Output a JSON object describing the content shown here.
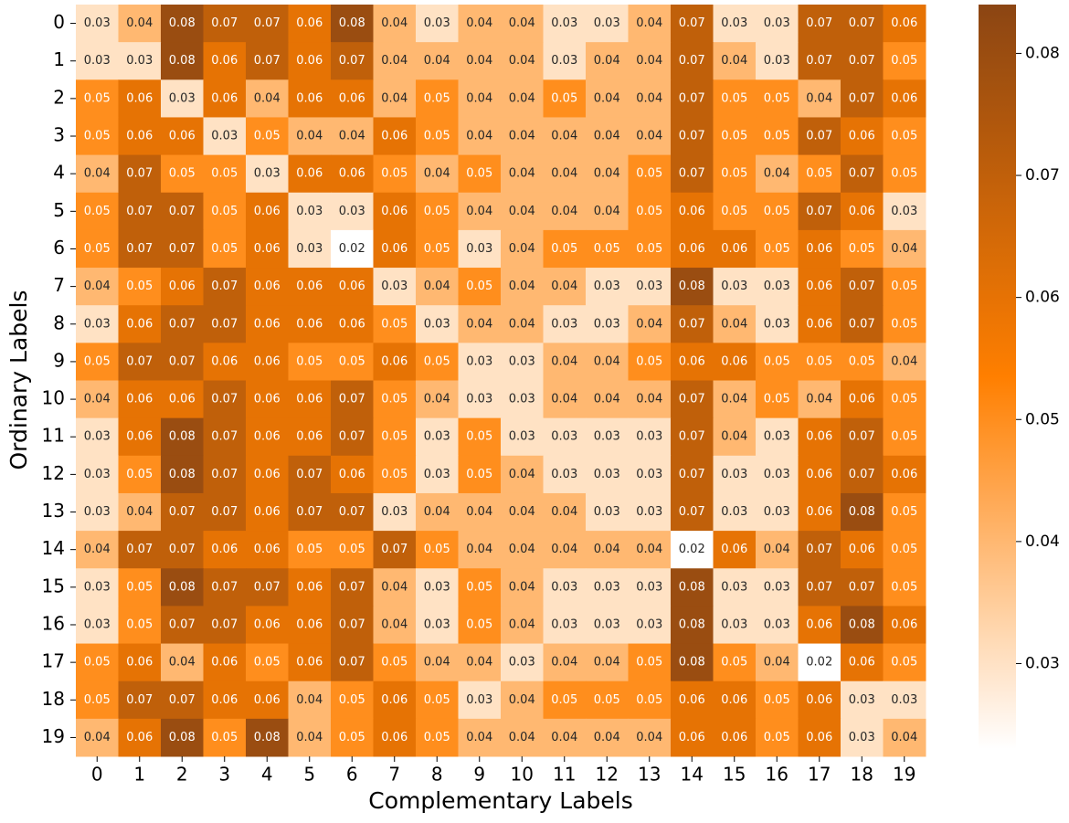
{
  "chart_data": {
    "type": "heatmap",
    "xlabel": "Complementary Labels",
    "ylabel": "Ordinary Labels",
    "x_categories": [
      0,
      1,
      2,
      3,
      4,
      5,
      6,
      7,
      8,
      9,
      10,
      11,
      12,
      13,
      14,
      15,
      16,
      17,
      18,
      19
    ],
    "y_categories": [
      0,
      1,
      2,
      3,
      4,
      5,
      6,
      7,
      8,
      9,
      10,
      11,
      12,
      13,
      14,
      15,
      16,
      17,
      18,
      19
    ],
    "values": [
      [
        0.03,
        0.04,
        0.08,
        0.07,
        0.07,
        0.06,
        0.08,
        0.04,
        0.03,
        0.04,
        0.04,
        0.03,
        0.03,
        0.04,
        0.07,
        0.03,
        0.03,
        0.07,
        0.07,
        0.06
      ],
      [
        0.03,
        0.03,
        0.08,
        0.06,
        0.07,
        0.06,
        0.07,
        0.04,
        0.04,
        0.04,
        0.04,
        0.03,
        0.04,
        0.04,
        0.07,
        0.04,
        0.03,
        0.07,
        0.07,
        0.05
      ],
      [
        0.05,
        0.06,
        0.03,
        0.06,
        0.04,
        0.06,
        0.06,
        0.04,
        0.05,
        0.04,
        0.04,
        0.05,
        0.04,
        0.04,
        0.07,
        0.05,
        0.05,
        0.04,
        0.07,
        0.06
      ],
      [
        0.05,
        0.06,
        0.06,
        0.03,
        0.05,
        0.04,
        0.04,
        0.06,
        0.05,
        0.04,
        0.04,
        0.04,
        0.04,
        0.04,
        0.07,
        0.05,
        0.05,
        0.07,
        0.06,
        0.05
      ],
      [
        0.04,
        0.07,
        0.05,
        0.05,
        0.03,
        0.06,
        0.06,
        0.05,
        0.04,
        0.05,
        0.04,
        0.04,
        0.04,
        0.05,
        0.07,
        0.05,
        0.04,
        0.05,
        0.07,
        0.05
      ],
      [
        0.05,
        0.07,
        0.07,
        0.05,
        0.06,
        0.03,
        0.03,
        0.06,
        0.05,
        0.04,
        0.04,
        0.04,
        0.04,
        0.05,
        0.06,
        0.05,
        0.05,
        0.07,
        0.06,
        0.03
      ],
      [
        0.05,
        0.07,
        0.07,
        0.05,
        0.06,
        0.03,
        0.02,
        0.06,
        0.05,
        0.03,
        0.04,
        0.05,
        0.05,
        0.05,
        0.06,
        0.06,
        0.05,
        0.06,
        0.05,
        0.04
      ],
      [
        0.04,
        0.05,
        0.06,
        0.07,
        0.06,
        0.06,
        0.06,
        0.03,
        0.04,
        0.05,
        0.04,
        0.04,
        0.03,
        0.03,
        0.08,
        0.03,
        0.03,
        0.06,
        0.07,
        0.05
      ],
      [
        0.03,
        0.06,
        0.07,
        0.07,
        0.06,
        0.06,
        0.06,
        0.05,
        0.03,
        0.04,
        0.04,
        0.03,
        0.03,
        0.04,
        0.07,
        0.04,
        0.03,
        0.06,
        0.07,
        0.05
      ],
      [
        0.05,
        0.07,
        0.07,
        0.06,
        0.06,
        0.05,
        0.05,
        0.06,
        0.05,
        0.03,
        0.03,
        0.04,
        0.04,
        0.05,
        0.06,
        0.06,
        0.05,
        0.05,
        0.05,
        0.04
      ],
      [
        0.04,
        0.06,
        0.06,
        0.07,
        0.06,
        0.06,
        0.07,
        0.05,
        0.04,
        0.03,
        0.03,
        0.04,
        0.04,
        0.04,
        0.07,
        0.04,
        0.05,
        0.04,
        0.06,
        0.05
      ],
      [
        0.03,
        0.06,
        0.08,
        0.07,
        0.06,
        0.06,
        0.07,
        0.05,
        0.03,
        0.05,
        0.03,
        0.03,
        0.03,
        0.03,
        0.07,
        0.04,
        0.03,
        0.06,
        0.07,
        0.05
      ],
      [
        0.03,
        0.05,
        0.08,
        0.07,
        0.06,
        0.07,
        0.06,
        0.05,
        0.03,
        0.05,
        0.04,
        0.03,
        0.03,
        0.03,
        0.07,
        0.03,
        0.03,
        0.06,
        0.07,
        0.06
      ],
      [
        0.03,
        0.04,
        0.07,
        0.07,
        0.06,
        0.07,
        0.07,
        0.03,
        0.04,
        0.04,
        0.04,
        0.04,
        0.03,
        0.03,
        0.07,
        0.03,
        0.03,
        0.06,
        0.08,
        0.05
      ],
      [
        0.04,
        0.07,
        0.07,
        0.06,
        0.06,
        0.05,
        0.05,
        0.07,
        0.05,
        0.04,
        0.04,
        0.04,
        0.04,
        0.04,
        0.02,
        0.06,
        0.04,
        0.07,
        0.06,
        0.05
      ],
      [
        0.03,
        0.05,
        0.08,
        0.07,
        0.07,
        0.06,
        0.07,
        0.04,
        0.03,
        0.05,
        0.04,
        0.03,
        0.03,
        0.03,
        0.08,
        0.03,
        0.03,
        0.07,
        0.07,
        0.05
      ],
      [
        0.03,
        0.05,
        0.07,
        0.07,
        0.06,
        0.06,
        0.07,
        0.04,
        0.03,
        0.05,
        0.04,
        0.03,
        0.03,
        0.03,
        0.08,
        0.03,
        0.03,
        0.06,
        0.08,
        0.06
      ],
      [
        0.05,
        0.06,
        0.04,
        0.06,
        0.05,
        0.06,
        0.07,
        0.05,
        0.04,
        0.04,
        0.03,
        0.04,
        0.04,
        0.05,
        0.08,
        0.05,
        0.04,
        0.02,
        0.06,
        0.05
      ],
      [
        0.05,
        0.07,
        0.07,
        0.06,
        0.06,
        0.04,
        0.05,
        0.06,
        0.05,
        0.03,
        0.04,
        0.05,
        0.05,
        0.05,
        0.06,
        0.06,
        0.05,
        0.06,
        0.03,
        0.03
      ],
      [
        0.04,
        0.06,
        0.08,
        0.05,
        0.08,
        0.04,
        0.05,
        0.06,
        0.05,
        0.04,
        0.04,
        0.04,
        0.04,
        0.04,
        0.06,
        0.06,
        0.05,
        0.06,
        0.03,
        0.04
      ]
    ],
    "colormap": [
      "#ffffff",
      "#ff7f00",
      "#8b4513"
    ],
    "clim": [
      0.023,
      0.084
    ],
    "colorbar_ticks": [
      0.03,
      0.04,
      0.05,
      0.06,
      0.07,
      0.08
    ]
  }
}
